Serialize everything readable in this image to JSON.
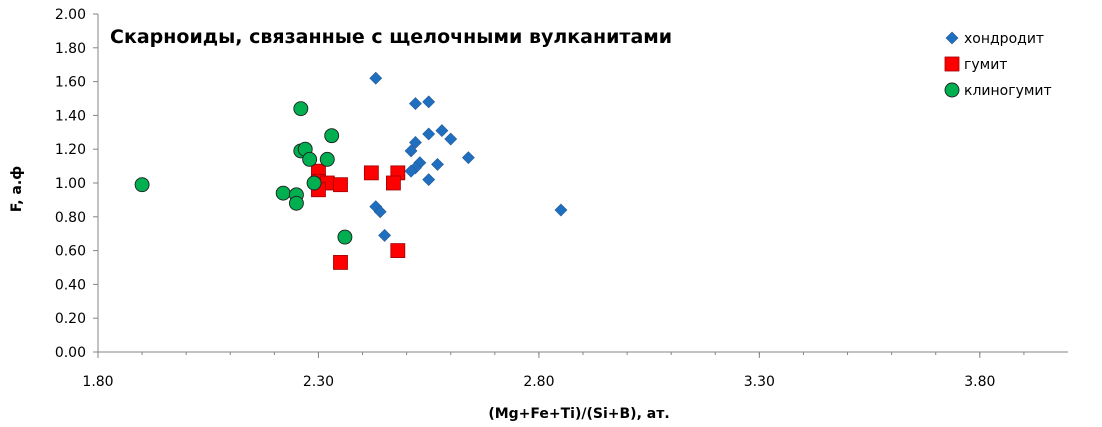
{
  "chart_data": {
    "type": "scatter",
    "title": "Скарноиды, связанные с щелочными вулканитами",
    "xlabel": "(Mg+Fe+Ti)/(Si+B), ат.",
    "ylabel": "F, а.ф",
    "xlim": [
      1.8,
      4.0
    ],
    "ylim": [
      0.0,
      2.0
    ],
    "x_ticks": [
      "1.80",
      "2.30",
      "2.80",
      "3.30",
      "3.80"
    ],
    "y_ticks": [
      "0.00",
      "0.20",
      "0.40",
      "0.60",
      "0.80",
      "1.00",
      "1.20",
      "1.40",
      "1.60",
      "1.80",
      "2.00"
    ],
    "grid": false,
    "legend_position": "top-right",
    "series": [
      {
        "name": "хондродит",
        "marker": "diamond",
        "color": "#1F6FC1",
        "points": [
          [
            2.43,
            1.62
          ],
          [
            2.52,
            1.47
          ],
          [
            2.55,
            1.48
          ],
          [
            2.58,
            1.31
          ],
          [
            2.6,
            1.26
          ],
          [
            2.55,
            1.29
          ],
          [
            2.52,
            1.24
          ],
          [
            2.51,
            1.19
          ],
          [
            2.64,
            1.15
          ],
          [
            2.53,
            1.12
          ],
          [
            2.57,
            1.11
          ],
          [
            2.52,
            1.09
          ],
          [
            2.51,
            1.07
          ],
          [
            2.55,
            1.02
          ],
          [
            2.43,
            0.86
          ],
          [
            2.44,
            0.83
          ],
          [
            2.45,
            0.69
          ],
          [
            2.85,
            0.84
          ]
        ]
      },
      {
        "name": "гумит",
        "marker": "square",
        "color": "#FF0000",
        "points": [
          [
            2.3,
            1.07
          ],
          [
            2.3,
            1.01
          ],
          [
            2.32,
            1.0
          ],
          [
            2.3,
            0.96
          ],
          [
            2.35,
            0.99
          ],
          [
            2.42,
            1.06
          ],
          [
            2.48,
            1.06
          ],
          [
            2.47,
            1.0
          ],
          [
            2.48,
            0.6
          ],
          [
            2.35,
            0.53
          ]
        ]
      },
      {
        "name": "клиногумит",
        "marker": "circle",
        "color": "#00B050",
        "points": [
          [
            1.9,
            0.99
          ],
          [
            2.26,
            1.44
          ],
          [
            2.26,
            1.19
          ],
          [
            2.27,
            1.2
          ],
          [
            2.28,
            1.14
          ],
          [
            2.33,
            1.28
          ],
          [
            2.32,
            1.14
          ],
          [
            2.29,
            1.0
          ],
          [
            2.22,
            0.94
          ],
          [
            2.25,
            0.93
          ],
          [
            2.25,
            0.88
          ],
          [
            2.36,
            0.68
          ]
        ]
      }
    ]
  }
}
